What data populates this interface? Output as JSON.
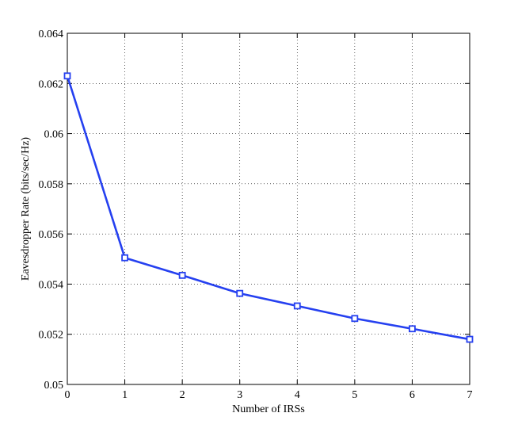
{
  "chart_data": {
    "type": "line",
    "title": "",
    "xlabel": "Number of IRSs",
    "ylabel": "Eavesdropper Rate (bits/sec/Hz)",
    "xlim": [
      0,
      7
    ],
    "ylim": [
      0.05,
      0.064
    ],
    "x_ticks": [
      0,
      1,
      2,
      3,
      4,
      5,
      6,
      7
    ],
    "y_ticks": [
      0.05,
      0.052,
      0.054,
      0.056,
      0.058,
      0.06,
      0.062,
      0.064
    ],
    "x_tick_labels": [
      "0",
      "1",
      "2",
      "3",
      "4",
      "5",
      "6",
      "7"
    ],
    "y_tick_labels": [
      "0.05",
      "0.052",
      "0.054",
      "0.056",
      "0.058",
      "0.06",
      "0.062",
      "0.064"
    ],
    "grid": true,
    "legend": "none",
    "series": [
      {
        "x": [
          0,
          1,
          2,
          3,
          4,
          5,
          6,
          7
        ],
        "values": [
          0.0623,
          0.05505,
          0.05435,
          0.05363,
          0.05313,
          0.05263,
          0.05222,
          0.0518
        ],
        "color": "#2540f0",
        "marker": "square"
      }
    ]
  }
}
